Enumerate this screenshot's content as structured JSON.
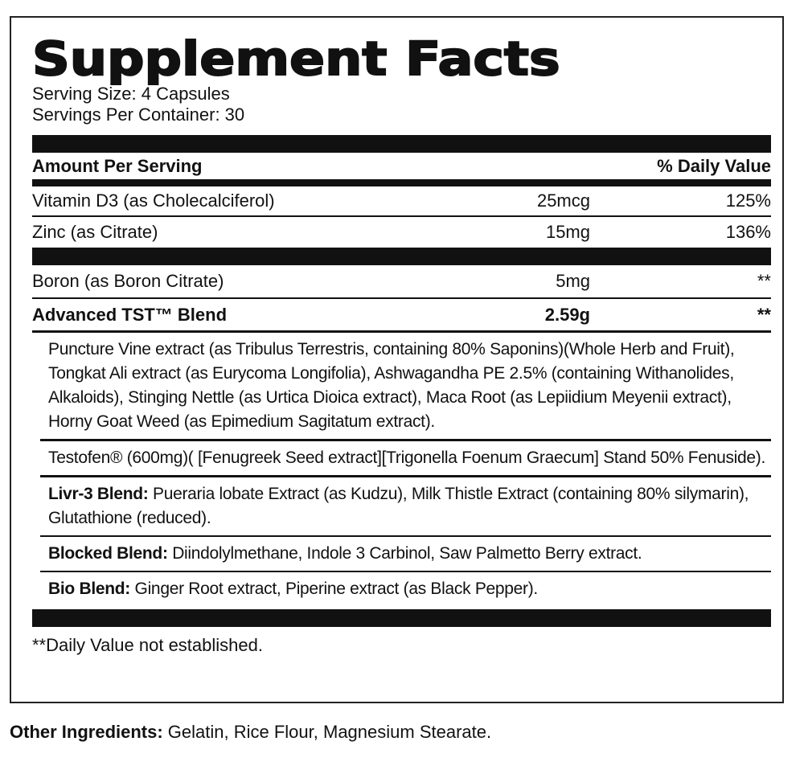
{
  "title": "Supplement Facts",
  "serving_size": "Serving Size: 4 Capsules",
  "servings_per_container": "Servings Per Container: 30",
  "header": {
    "amount": "Amount Per Serving",
    "dv": "% Daily Value"
  },
  "nutrients": [
    {
      "name": "Vitamin D3 (as Cholecalciferol)",
      "amount": "25mcg",
      "dv": "125%"
    },
    {
      "name": "Zinc (as Citrate)",
      "amount": "15mg",
      "dv": "136%"
    }
  ],
  "boron": {
    "name": "Boron (as Boron Citrate)",
    "amount": "5mg",
    "dv": "**"
  },
  "blend": {
    "name": "Advanced TST™ Blend",
    "amount": "2.59g",
    "dv": "**"
  },
  "blend_items": [
    {
      "label": "",
      "text": "Puncture Vine extract (as Tribulus Terrestris, containing 80% Saponins)(Whole Herb and Fruit), Tongkat Ali extract (as Eurycoma Longifolia), Ashwagandha PE 2.5% (containing Withanolides, Alkaloids), Stinging Nettle (as Urtica Dioica extract), Maca Root (as Lepiidium Meyenii extract), Horny Goat Weed (as Epimedium Sagitatum extract)."
    },
    {
      "label": "",
      "text": "Testofen® (600mg)( [Fenugreek Seed extract][Trigonella Foenum Graecum] Stand 50% Fenuside)."
    },
    {
      "label": "Livr-3 Blend:",
      "text": " Pueraria lobate Extract (as Kudzu), Milk Thistle Extract (containing 80% silymarin), Glutathione (reduced)."
    },
    {
      "label": "Blocked Blend:",
      "text": " Diindolylmethane, Indole 3 Carbinol, Saw Palmetto Berry extract."
    },
    {
      "label": "Bio Blend:",
      "text": " Ginger Root extract, Piperine extract (as Black Pepper)."
    }
  ],
  "footnote": "**Daily Value not established.",
  "other": {
    "label": "Other Ingredients:",
    "text": " Gelatin, Rice Flour, Magnesium Stearate."
  }
}
